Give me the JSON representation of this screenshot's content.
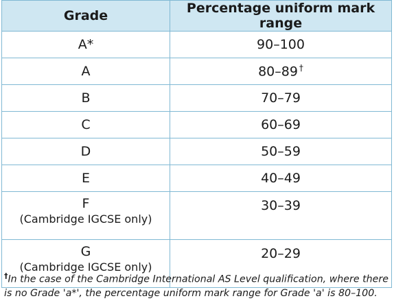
{
  "table": {
    "headers": {
      "grade": "Grade",
      "range": "Percentage uniform mark range"
    },
    "rows": [
      {
        "grade": "A*",
        "note": "",
        "range": "90–100",
        "mark": ""
      },
      {
        "grade": "A",
        "note": "",
        "range": "80–89",
        "mark": "†"
      },
      {
        "grade": "B",
        "note": "",
        "range": "70–79",
        "mark": ""
      },
      {
        "grade": "C",
        "note": "",
        "range": "60–69",
        "mark": ""
      },
      {
        "grade": "D",
        "note": "",
        "range": "50–59",
        "mark": ""
      },
      {
        "grade": "E",
        "note": "",
        "range": "40–49",
        "mark": ""
      },
      {
        "grade": "F",
        "note": "(Cambridge IGCSE only)",
        "range": "30–39",
        "mark": ""
      },
      {
        "grade": "G",
        "note": "(Cambridge IGCSE only)",
        "range": "20–29",
        "mark": ""
      }
    ]
  },
  "footnote": {
    "symbol": "†",
    "text": "In the case of the Cambridge International AS Level qualification, where there is no Grade 'a*', the percentage uniform mark range for Grade 'a' is 80–100."
  },
  "colors": {
    "header_bg": "#cfe7f2",
    "border": "#7fb8d3"
  }
}
